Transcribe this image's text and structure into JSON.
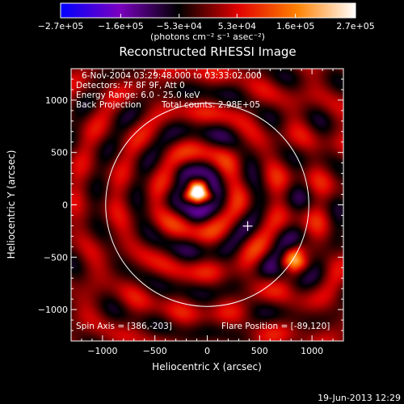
{
  "chart_data": {
    "type": "heatmap",
    "title": "Reconstructed RHESSI Image",
    "xlabel": "Heliocentric X (arcsec)",
    "ylabel": "Heliocentric Y (arcsec)",
    "xlim": [
      -1300,
      1300
    ],
    "ylim": [
      -1300,
      1300
    ],
    "x_ticks": [
      -1000,
      -500,
      0,
      500,
      1000
    ],
    "x_tick_labels": [
      "−1000",
      "−500",
      "0",
      "500",
      "1000"
    ],
    "y_ticks": [
      -1000,
      -500,
      0,
      500,
      1000
    ],
    "y_tick_labels": [
      "−1000",
      "−500",
      "0",
      "500",
      "1000"
    ],
    "colorbar": {
      "min": -270000,
      "max": 270000,
      "ticks": [
        -270000,
        -160000,
        -53000,
        53000,
        160000,
        270000
      ],
      "tick_labels": [
        "−2.7e+05",
        "−1.6e+05",
        "−5.3e+04",
        "5.3e+04",
        "1.6e+05",
        "2.7e+05"
      ],
      "unit_label": "(photons cm⁻² s⁻¹ asec⁻²)",
      "colors": [
        "#0000ff",
        "#7b00c0",
        "#000000",
        "#e00000",
        "#ff8000",
        "#ffffff"
      ]
    },
    "solar_limb": {
      "center": [
        0,
        0
      ],
      "radius": 970
    },
    "spin_axis_marker": {
      "x": 386,
      "y": -203
    },
    "sources": [
      {
        "x": -89,
        "y": 120,
        "strength": 1.0
      },
      {
        "x": 820,
        "y": -520,
        "strength": 0.45
      }
    ],
    "annotations": {
      "time_range": "6-Nov-2004 03:29:48.000 to 03:33:02.000",
      "detectors": "Detectors: 7F 8F 9F, Att 0",
      "energy_range": "Energy Range: 6.0 - 25.0 keV",
      "algorithm": "Back Projection",
      "total_counts": "Total counts: 2.98E+05",
      "spin_axis": "Spin Axis = [386,-203]",
      "flare_position": "Flare Position = [-89,120]"
    }
  },
  "footer": {
    "timestamp": "19-Jun-2013 12:29"
  }
}
